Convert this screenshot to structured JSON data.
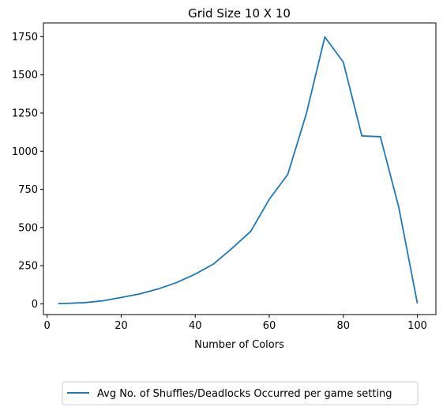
{
  "chart_data": {
    "type": "line",
    "title": "Grid Size 10 X 10",
    "xlabel": "Number of Colors",
    "ylabel": "",
    "xlim": [
      -1,
      105
    ],
    "ylim": [
      -70,
      1840
    ],
    "xticks": [
      0,
      20,
      40,
      60,
      80,
      100
    ],
    "yticks": [
      0,
      250,
      500,
      750,
      1000,
      1250,
      1500,
      1750
    ],
    "grid": false,
    "legend_position": "bottom-center-outside",
    "series": [
      {
        "name": "Avg No. of Shuffles/Deadlocks Occurred per game setting",
        "color": "#1f77b4",
        "x": [
          3,
          5,
          10,
          15,
          20,
          25,
          30,
          35,
          40,
          45,
          50,
          55,
          60,
          65,
          70,
          75,
          80,
          85,
          90,
          95,
          100
        ],
        "y": [
          2,
          3,
          8,
          20,
          42,
          65,
          98,
          140,
          195,
          262,
          365,
          475,
          685,
          848,
          1245,
          1748,
          1583,
          1100,
          1095,
          630,
          3
        ]
      }
    ]
  }
}
